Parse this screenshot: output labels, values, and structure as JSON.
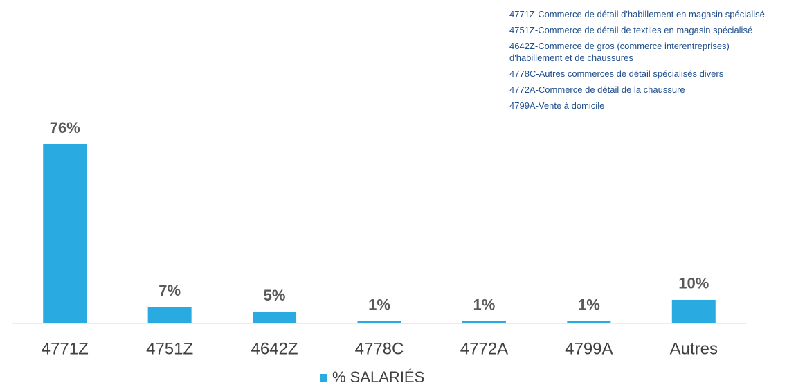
{
  "chart_data": {
    "type": "bar",
    "categories": [
      "4771Z",
      "4751Z",
      "4642Z",
      "4778C",
      "4772A",
      "4799A",
      "Autres"
    ],
    "series": [
      {
        "name": "% SALARIÉS",
        "color": "#29abe2",
        "values": [
          76,
          7,
          5,
          1,
          1,
          1,
          10
        ],
        "value_labels": [
          "76%",
          "7%",
          "5%",
          "1%",
          "1%",
          "1%",
          "10%"
        ]
      }
    ],
    "annotations": [
      "4771Z-Commerce de détail d'habillement en magasin spécialisé",
      "4751Z-Commerce de détail de textiles en magasin spécialisé",
      "4642Z-Commerce de gros (commerce interentreprises) d'habillement et de chaussures",
      "4778C-Autres commerces de détail spécialisés divers",
      "4772A-Commerce de détail de la chaussure",
      "4799A-Vente à domicile"
    ],
    "legend": "bottom"
  }
}
